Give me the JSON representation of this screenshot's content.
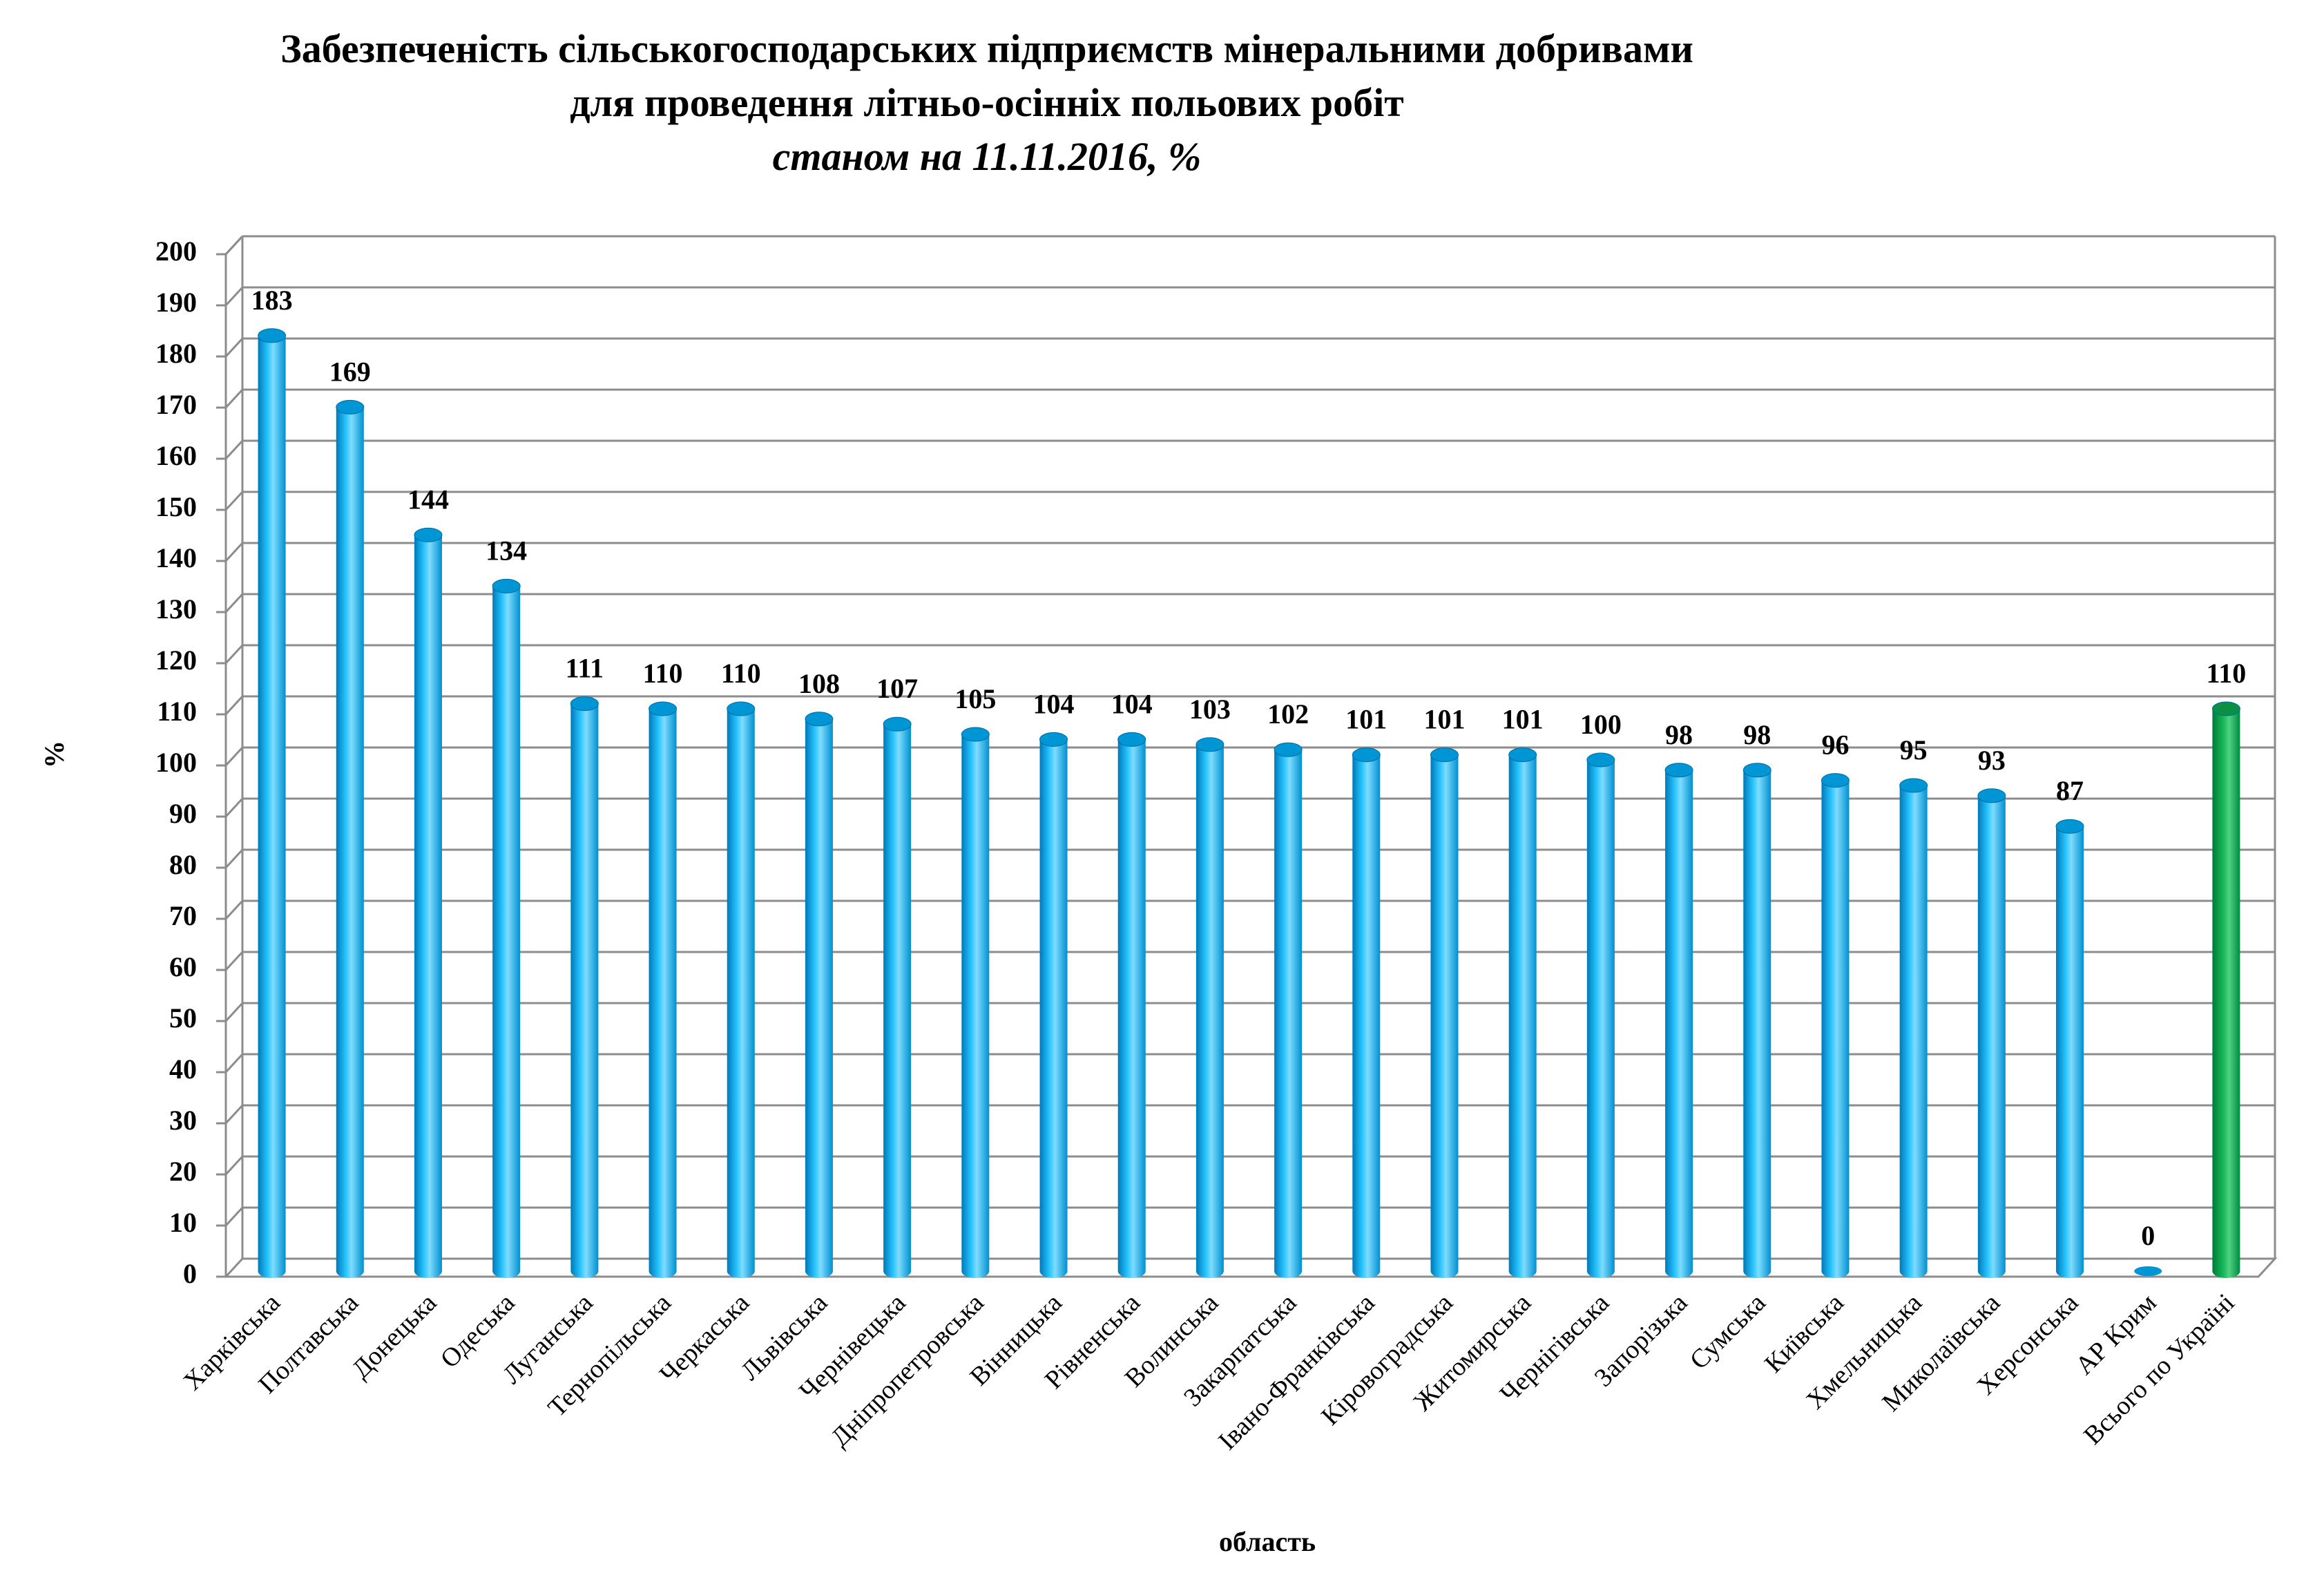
{
  "chart_data": {
    "type": "bar",
    "title": [
      "Забезпеченість сільськогосподарських підприємств мінеральними добривами",
      "для проведення літньо-осінніх польових робіт"
    ],
    "subtitle": "станом на 11.11.2016, %",
    "xlabel": "область",
    "ylabel": "%",
    "ylim": [
      0,
      200
    ],
    "yticks": [
      0,
      10,
      20,
      30,
      40,
      50,
      60,
      70,
      80,
      90,
      100,
      110,
      120,
      130,
      140,
      150,
      160,
      170,
      180,
      190,
      200
    ],
    "grid": true,
    "categories": [
      "Харківська",
      "Полтавська",
      "Донецька",
      "Одеська",
      "Луганська",
      "Тернопільська",
      "Черкаська",
      "Львівська",
      "Чернівецька",
      "Дніпропетровська",
      "Вінницька",
      "Рівненська",
      "Волинська",
      "Закарпатська",
      "Івано-Франківська",
      "Кіровоградська",
      "Житомирська",
      "Чернігівська",
      "Запорізька",
      "Сумська",
      "Київська",
      "Хмельницька",
      "Миколаївська",
      "Херсонська",
      "АР Крим",
      "Всього по Україні"
    ],
    "values": [
      183,
      169,
      144,
      134,
      111,
      110,
      110,
      108,
      107,
      105,
      104,
      104,
      103,
      102,
      101,
      101,
      101,
      100,
      98,
      98,
      96,
      95,
      93,
      87,
      0,
      110
    ],
    "data_labels": [
      "183",
      "169",
      "144",
      "134",
      "111",
      "110",
      "110",
      "108",
      "107",
      "105",
      "104",
      "104",
      "103",
      "102",
      "101",
      "101",
      "101",
      "100",
      "98",
      "98",
      "96",
      "95",
      "93",
      "87",
      "0",
      "110"
    ],
    "bar_colors": [
      "#00aeef",
      "#00aeef",
      "#00aeef",
      "#00aeef",
      "#00aeef",
      "#00aeef",
      "#00aeef",
      "#00aeef",
      "#00aeef",
      "#00aeef",
      "#00aeef",
      "#00aeef",
      "#00aeef",
      "#00aeef",
      "#00aeef",
      "#00aeef",
      "#00aeef",
      "#00aeef",
      "#00aeef",
      "#00aeef",
      "#00aeef",
      "#00aeef",
      "#00aeef",
      "#00aeef",
      "#00aeef",
      "#00a651"
    ],
    "colors": {
      "region_bar": "#00aeef",
      "total_bar": "#00a651",
      "gridline": "#8c8c8c",
      "axis": "#8c8c8c"
    }
  }
}
